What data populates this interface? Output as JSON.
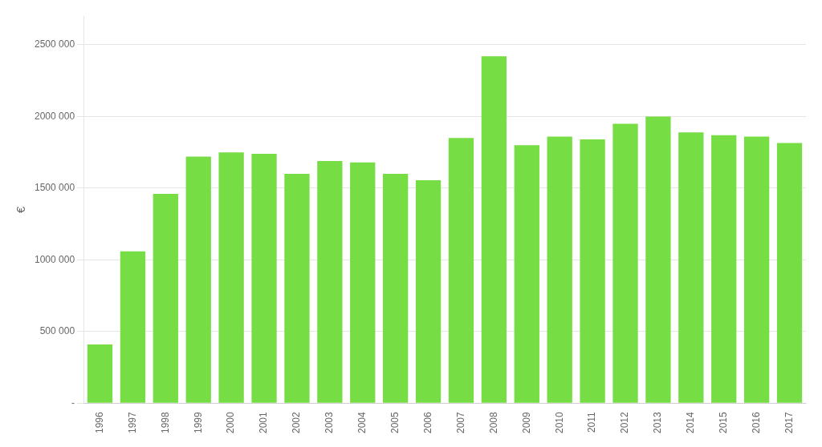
{
  "chart_data": {
    "type": "bar",
    "ylabel": "€",
    "categories": [
      "1996",
      "1997",
      "1998",
      "1999",
      "2000",
      "2001",
      "2002",
      "2003",
      "2004",
      "2005",
      "2006",
      "2007",
      "2008",
      "2009",
      "2010",
      "2011",
      "2012",
      "2013",
      "2014",
      "2015",
      "2016",
      "2017"
    ],
    "values": [
      410000,
      1060000,
      1460000,
      1720000,
      1750000,
      1740000,
      1600000,
      1690000,
      1680000,
      1600000,
      1555000,
      1850000,
      2420000,
      1800000,
      1860000,
      1840000,
      1950000,
      2000000,
      1890000,
      1870000,
      1860000,
      1815000
    ],
    "color": "#77dd44",
    "ylim": [
      0,
      2700000
    ],
    "yticks": [
      {
        "value": 0,
        "label": "-"
      },
      {
        "value": 500000,
        "label": "500 000"
      },
      {
        "value": 1000000,
        "label": "1000 000"
      },
      {
        "value": 1500000,
        "label": "1500 000"
      },
      {
        "value": 2000000,
        "label": "2000 000"
      },
      {
        "value": 2500000,
        "label": "2500 000"
      }
    ],
    "grid": true
  }
}
